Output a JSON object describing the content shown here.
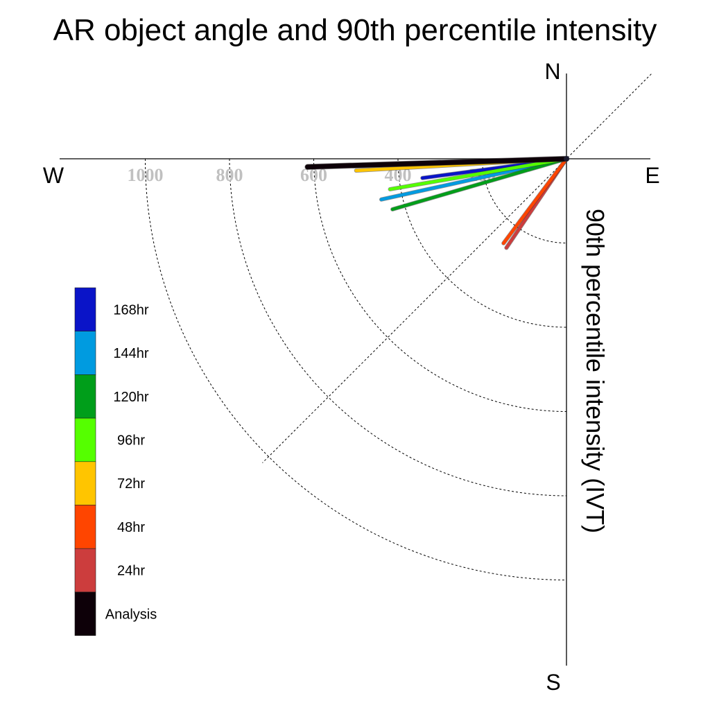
{
  "chart_data": {
    "type": "polar-vector",
    "title": "AR object angle and 90th percentile intensity",
    "radial_label": "90th percentile intensity (IVT)",
    "compass": {
      "north": "N",
      "south": "S",
      "east": "E",
      "west": "W"
    },
    "radial_ticks": [
      200,
      400,
      600,
      800,
      1000
    ],
    "radial_range": [
      0,
      1160
    ],
    "angle_reference": "degrees clockwise from east (screen-down positive)",
    "series": [
      {
        "name": "Analysis",
        "color": "#0d0008",
        "angle_deg": 178.2,
        "intensity": 615
      },
      {
        "name": "24hr",
        "color": "#cc3d3d",
        "angle_deg": 124.0,
        "intensity": 255
      },
      {
        "name": "48hr",
        "color": "#ff4500",
        "angle_deg": 126.7,
        "intensity": 250
      },
      {
        "name": "72hr",
        "color": "#ffc500",
        "angle_deg": 176.8,
        "intensity": 500
      },
      {
        "name": "96hr",
        "color": "#55ff00",
        "angle_deg": 170.2,
        "intensity": 425
      },
      {
        "name": "120hr",
        "color": "#009e1a",
        "angle_deg": 163.8,
        "intensity": 430
      },
      {
        "name": "144hr",
        "color": "#009be0",
        "angle_deg": 167.6,
        "intensity": 450
      },
      {
        "name": "168hr",
        "color": "#0a14c8",
        "angle_deg": 172.4,
        "intensity": 345
      }
    ],
    "legend_order": [
      "168hr",
      "144hr",
      "120hr",
      "96hr",
      "72hr",
      "48hr",
      "24hr",
      "Analysis"
    ],
    "grid": true
  }
}
